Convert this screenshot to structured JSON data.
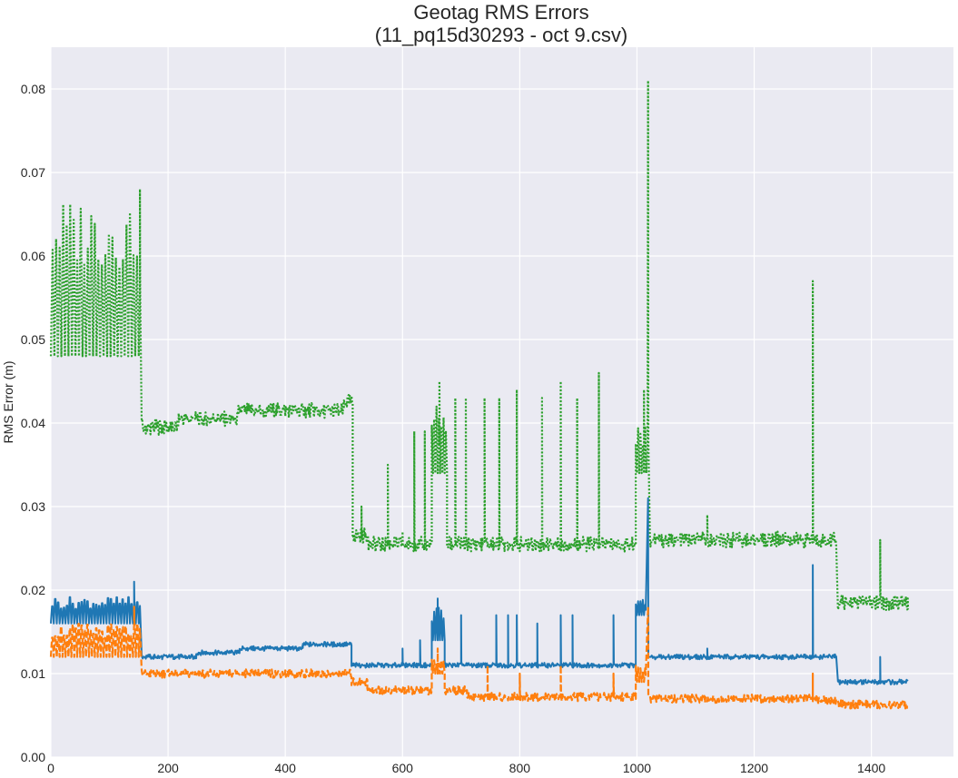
{
  "chart_data": {
    "type": "line",
    "title_line1": "Geotag RMS Errors",
    "title_line2": "(11_pq15d30293 - oct 9.csv)",
    "xlabel": "",
    "ylabel": "RMS Error (m)",
    "xlim": [
      0,
      1540
    ],
    "ylim": [
      0,
      0.085
    ],
    "grid": true,
    "legend": "none",
    "x_ticks": [
      "0",
      "200",
      "400",
      "600",
      "800",
      "1000",
      "1200",
      "1400"
    ],
    "y_ticks": [
      "0.00",
      "0.01",
      "0.02",
      "0.03",
      "0.04",
      "0.05",
      "0.06",
      "0.07",
      "0.08"
    ],
    "colors": {
      "background": "#eaeaf2",
      "grid": "#ffffff",
      "blue": "#1f77b4",
      "orange": "#ff7f0e",
      "green": "#2ca02c"
    },
    "series": [
      {
        "style": "dotted",
        "color": "#2ca02c",
        "noise": 0.0009,
        "segments": [
          {
            "x0": 0,
            "x1": 152,
            "osc_lo": 0.048,
            "osc_hi": 0.067,
            "period": 6
          },
          {
            "x0": 155,
            "x1": 218,
            "base": 0.0395
          },
          {
            "x0": 218,
            "x1": 320,
            "base": 0.0405
          },
          {
            "x0": 320,
            "x1": 500,
            "base": 0.0415
          },
          {
            "x0": 500,
            "x1": 515,
            "base": 0.0425
          },
          {
            "x0": 515,
            "x1": 542,
            "base": 0.0265
          },
          {
            "x0": 542,
            "x1": 650,
            "base": 0.0255
          },
          {
            "x0": 650,
            "x1": 676,
            "osc_lo": 0.034,
            "osc_hi": 0.042,
            "period": 4
          },
          {
            "x0": 676,
            "x1": 998,
            "base": 0.0255
          },
          {
            "x0": 998,
            "x1": 1018,
            "osc_lo": 0.034,
            "osc_hi": 0.04,
            "period": 4
          },
          {
            "x0": 1022,
            "x1": 1340,
            "base": 0.026
          },
          {
            "x0": 1343,
            "x1": 1462,
            "base": 0.0185
          }
        ],
        "spikes": [
          {
            "x": 152,
            "y": 0.068
          },
          {
            "x": 530,
            "y": 0.03
          },
          {
            "x": 575,
            "y": 0.035
          },
          {
            "x": 600,
            "y": 0.027
          },
          {
            "x": 620,
            "y": 0.039
          },
          {
            "x": 638,
            "y": 0.039
          },
          {
            "x": 663,
            "y": 0.045
          },
          {
            "x": 690,
            "y": 0.043
          },
          {
            "x": 708,
            "y": 0.043
          },
          {
            "x": 740,
            "y": 0.043
          },
          {
            "x": 765,
            "y": 0.043
          },
          {
            "x": 795,
            "y": 0.044
          },
          {
            "x": 838,
            "y": 0.043
          },
          {
            "x": 870,
            "y": 0.045
          },
          {
            "x": 898,
            "y": 0.043
          },
          {
            "x": 935,
            "y": 0.046
          },
          {
            "x": 1012,
            "y": 0.044
          },
          {
            "x": 1019,
            "y": 0.081
          },
          {
            "x": 1120,
            "y": 0.029
          },
          {
            "x": 1240,
            "y": 0.027
          },
          {
            "x": 1300,
            "y": 0.057
          },
          {
            "x": 1415,
            "y": 0.026
          },
          {
            "x": 1462,
            "y": 0.019
          }
        ]
      },
      {
        "style": "solid",
        "color": "#1f77b4",
        "noise": 0.0003,
        "segments": [
          {
            "x0": 0,
            "x1": 152,
            "osc_lo": 0.016,
            "osc_hi": 0.02,
            "period": 5
          },
          {
            "x0": 155,
            "x1": 248,
            "base": 0.012
          },
          {
            "x0": 248,
            "x1": 322,
            "base": 0.0125
          },
          {
            "x0": 322,
            "x1": 430,
            "base": 0.013
          },
          {
            "x0": 430,
            "x1": 513,
            "base": 0.0135
          },
          {
            "x0": 513,
            "x1": 650,
            "base": 0.011
          },
          {
            "x0": 650,
            "x1": 672,
            "osc_lo": 0.014,
            "osc_hi": 0.018,
            "period": 4
          },
          {
            "x0": 672,
            "x1": 998,
            "base": 0.011
          },
          {
            "x0": 998,
            "x1": 1015,
            "osc_lo": 0.017,
            "osc_hi": 0.019,
            "period": 4
          },
          {
            "x0": 1022,
            "x1": 1340,
            "base": 0.012
          },
          {
            "x0": 1343,
            "x1": 1462,
            "base": 0.009
          }
        ],
        "spikes": [
          {
            "x": 142,
            "y": 0.021
          },
          {
            "x": 600,
            "y": 0.013
          },
          {
            "x": 630,
            "y": 0.014
          },
          {
            "x": 660,
            "y": 0.019
          },
          {
            "x": 700,
            "y": 0.017
          },
          {
            "x": 760,
            "y": 0.017
          },
          {
            "x": 780,
            "y": 0.017
          },
          {
            "x": 795,
            "y": 0.017
          },
          {
            "x": 830,
            "y": 0.016
          },
          {
            "x": 870,
            "y": 0.017
          },
          {
            "x": 890,
            "y": 0.017
          },
          {
            "x": 960,
            "y": 0.017
          },
          {
            "x": 1019,
            "y": 0.031
          },
          {
            "x": 1120,
            "y": 0.013
          },
          {
            "x": 1300,
            "y": 0.023
          },
          {
            "x": 1415,
            "y": 0.012
          }
        ]
      },
      {
        "style": "dashed",
        "color": "#ff7f0e",
        "noise": 0.0005,
        "segments": [
          {
            "x0": 0,
            "x1": 152,
            "osc_lo": 0.012,
            "osc_hi": 0.017,
            "period": 5
          },
          {
            "x0": 155,
            "x1": 513,
            "base": 0.01
          },
          {
            "x0": 513,
            "x1": 540,
            "base": 0.009
          },
          {
            "x0": 540,
            "x1": 650,
            "base": 0.008
          },
          {
            "x0": 650,
            "x1": 672,
            "osc_lo": 0.01,
            "osc_hi": 0.012,
            "period": 4
          },
          {
            "x0": 672,
            "x1": 710,
            "base": 0.008
          },
          {
            "x0": 710,
            "x1": 998,
            "base": 0.0072
          },
          {
            "x0": 998,
            "x1": 1015,
            "osc_lo": 0.009,
            "osc_hi": 0.011,
            "period": 4
          },
          {
            "x0": 1022,
            "x1": 1300,
            "base": 0.007
          },
          {
            "x0": 1300,
            "x1": 1340,
            "base": 0.0068
          },
          {
            "x0": 1343,
            "x1": 1462,
            "base": 0.0063
          }
        ],
        "spikes": [
          {
            "x": 142,
            "y": 0.018
          },
          {
            "x": 660,
            "y": 0.013
          },
          {
            "x": 745,
            "y": 0.011
          },
          {
            "x": 800,
            "y": 0.01
          },
          {
            "x": 870,
            "y": 0.011
          },
          {
            "x": 960,
            "y": 0.01
          },
          {
            "x": 1019,
            "y": 0.018
          },
          {
            "x": 1300,
            "y": 0.01
          }
        ]
      }
    ]
  }
}
